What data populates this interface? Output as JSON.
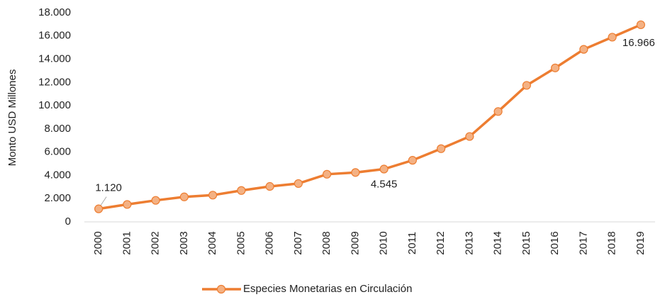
{
  "chart_data": {
    "type": "line",
    "y_label": "Monto USD Millones",
    "categories": [
      "2000",
      "2001",
      "2002",
      "2003",
      "2004",
      "2005",
      "2006",
      "2007",
      "2008",
      "2009",
      "2010",
      "2011",
      "2012",
      "2013",
      "2014",
      "2015",
      "2016",
      "2017",
      "2018",
      "2019"
    ],
    "series": [
      {
        "name": "Especies Monetarias en Circulación",
        "color": "#ED7D31",
        "marker_color": "#F4B183",
        "values": [
          1120,
          1500,
          1850,
          2150,
          2300,
          2700,
          3050,
          3300,
          4100,
          4250,
          4545,
          5300,
          6300,
          7350,
          9500,
          11750,
          13250,
          14850,
          15900,
          16966
        ],
        "value_labels": [
          "1.120",
          null,
          null,
          null,
          null,
          null,
          null,
          null,
          null,
          null,
          "4.545",
          null,
          null,
          null,
          null,
          null,
          null,
          null,
          null,
          "16.966"
        ]
      }
    ],
    "ylim": [
      0,
      18000
    ],
    "yticks": [
      0,
      {
        "value": 2000,
        "label": "2.000"
      },
      {
        "value": 4000,
        "label": "4.000"
      },
      {
        "value": 6000,
        "label": "6.000"
      },
      {
        "value": 8000,
        "label": "8.000"
      },
      {
        "value": 10000,
        "label": "10.000"
      },
      {
        "value": 12000,
        "label": "12.000"
      },
      {
        "value": 14000,
        "label": "14.000"
      },
      {
        "value": 16000,
        "label": "16.000"
      },
      {
        "value": 18000,
        "label": "18.000"
      }
    ],
    "legend": "bottom"
  }
}
